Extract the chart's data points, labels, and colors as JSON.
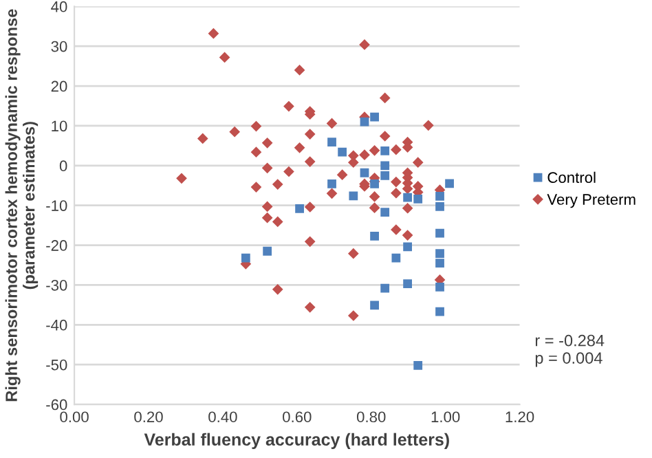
{
  "chart_data": {
    "type": "scatter",
    "xlabel": "Verbal fluency accuracy (hard letters)",
    "ylabel": "Right sensorimotor cortex hemodynamic response\n(parameter estimates)",
    "xlim": [
      0,
      1.2
    ],
    "xticks": [
      {
        "value": 0,
        "label": "0.00"
      },
      {
        "value": 0.2,
        "label": "0.20"
      },
      {
        "value": 0.4,
        "label": "0.40"
      },
      {
        "value": 0.6,
        "label": "0.60"
      },
      {
        "value": 0.8,
        "label": "0.80"
      },
      {
        "value": 1.0,
        "label": "1.00"
      },
      {
        "value": 1.2,
        "label": "1.20"
      }
    ],
    "ylim": [
      -60,
      40
    ],
    "yticks": [
      -60,
      -50,
      -40,
      -30,
      -20,
      -10,
      0,
      10,
      20,
      30,
      40
    ],
    "grid": "y",
    "legend": "right",
    "annotations": [
      "r = -0.284\np = 0.004"
    ],
    "series": [
      {
        "name": "Control",
        "color": "#4f81bd",
        "marker": "square",
        "x": [
          0.607,
          0.52,
          0.462,
          0.782,
          0.809,
          0.694,
          0.722,
          0.837,
          0.837,
          0.782,
          0.837,
          0.809,
          1.011,
          0.694,
          0.752,
          0.898,
          0.926,
          0.985,
          0.985,
          0.837,
          0.809,
          0.985,
          0.898,
          0.985,
          0.867,
          0.985,
          0.985,
          0.898,
          0.837,
          0.809,
          0.985,
          0.926
        ],
        "values": [
          -10.8,
          -21.5,
          -23.2,
          11.0,
          12.2,
          5.9,
          3.4,
          3.7,
          0,
          -1.8,
          -2.5,
          -4.6,
          -4.5,
          -4.6,
          -7.6,
          -8.0,
          -8.4,
          -7.7,
          -10.3,
          -11.7,
          -17.7,
          -17.0,
          -20.4,
          -22.1,
          -23.2,
          -24.5,
          -30.5,
          -29.7,
          -30.8,
          -35.1,
          -36.7,
          -50.2
        ]
      },
      {
        "name": "Very Preterm",
        "color": "#c0504d",
        "marker": "diamond",
        "x": [
          0.375,
          0.405,
          0.607,
          0.578,
          0.635,
          0.635,
          0.49,
          0.432,
          0.346,
          0.635,
          0.52,
          0.49,
          0.607,
          0.635,
          0.52,
          0.578,
          0.289,
          0.548,
          0.49,
          0.52,
          0.635,
          0.52,
          0.548,
          0.635,
          0.462,
          0.548,
          0.635,
          0.782,
          0.837,
          0.782,
          0.694,
          0.954,
          0.837,
          0.898,
          0.898,
          0.752,
          0.809,
          0.867,
          0.782,
          0.752,
          0.926,
          0.722,
          0.898,
          0.898,
          0.809,
          0.809,
          0.782,
          0.782,
          0.867,
          0.898,
          0.898,
          0.926,
          0.926,
          0.985,
          0.694,
          0.867,
          0.809,
          0.898,
          0.809,
          0.867,
          0.898,
          0.752,
          0.985,
          0.752
        ],
        "values": [
          33.2,
          27.2,
          24.0,
          14.9,
          12.9,
          7.9,
          9.9,
          8.5,
          6.8,
          1.0,
          5.7,
          3.4,
          4.5,
          13.6,
          -0.6,
          -1.5,
          -3.2,
          -4.7,
          -5.4,
          -10.3,
          -10.4,
          -13.1,
          -14.1,
          -19.1,
          -24.7,
          -31.1,
          -35.6,
          30.4,
          17.0,
          12.2,
          10.6,
          10.1,
          7.4,
          5.9,
          4.6,
          2.5,
          3.8,
          4.0,
          2.7,
          0.8,
          0.8,
          -2.3,
          -1.8,
          -3.0,
          -3.1,
          -4.0,
          -4.6,
          -5.2,
          -4.1,
          -4.4,
          -5.8,
          -5.2,
          -6.7,
          -6.1,
          -7.0,
          -6.9,
          -7.8,
          -10.7,
          -10.6,
          -16.1,
          -17.5,
          -22.1,
          -28.7,
          -37.7
        ]
      }
    ]
  }
}
